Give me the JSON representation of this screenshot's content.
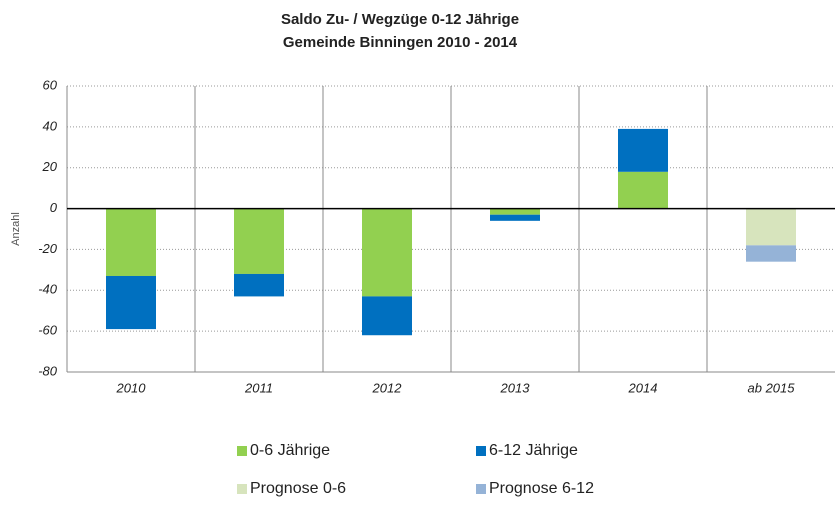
{
  "chart_data": {
    "type": "stacked_bar",
    "title": [
      "Saldo Zu- / Wegzüge 0-12 Jährige",
      "Gemeinde Binningen 2010 - 2014"
    ],
    "y_label": "Anzahl",
    "categories": [
      "2010",
      "2011",
      "2012",
      "2013",
      "2014",
      "ab 2015"
    ],
    "series": [
      {
        "name": "0-6 Jährige",
        "color": "#92d050",
        "values": [
          -33,
          -32,
          -43,
          -3,
          18,
          null
        ]
      },
      {
        "name": "6-12 Jährige",
        "color": "#0070c0",
        "values": [
          -26,
          -11,
          -19,
          -3,
          21,
          null
        ]
      },
      {
        "name": "Prognose 0-6",
        "color": "#d7e4bd",
        "values": [
          null,
          null,
          null,
          null,
          null,
          -18
        ]
      },
      {
        "name": "Prognose 6-12",
        "color": "#95b3d7",
        "values": [
          null,
          null,
          null,
          null,
          null,
          -8
        ]
      }
    ],
    "ylim": [
      -80,
      60
    ],
    "yticks": [
      -80,
      -60,
      -40,
      -20,
      0,
      20,
      40,
      60
    ],
    "grid": true
  }
}
